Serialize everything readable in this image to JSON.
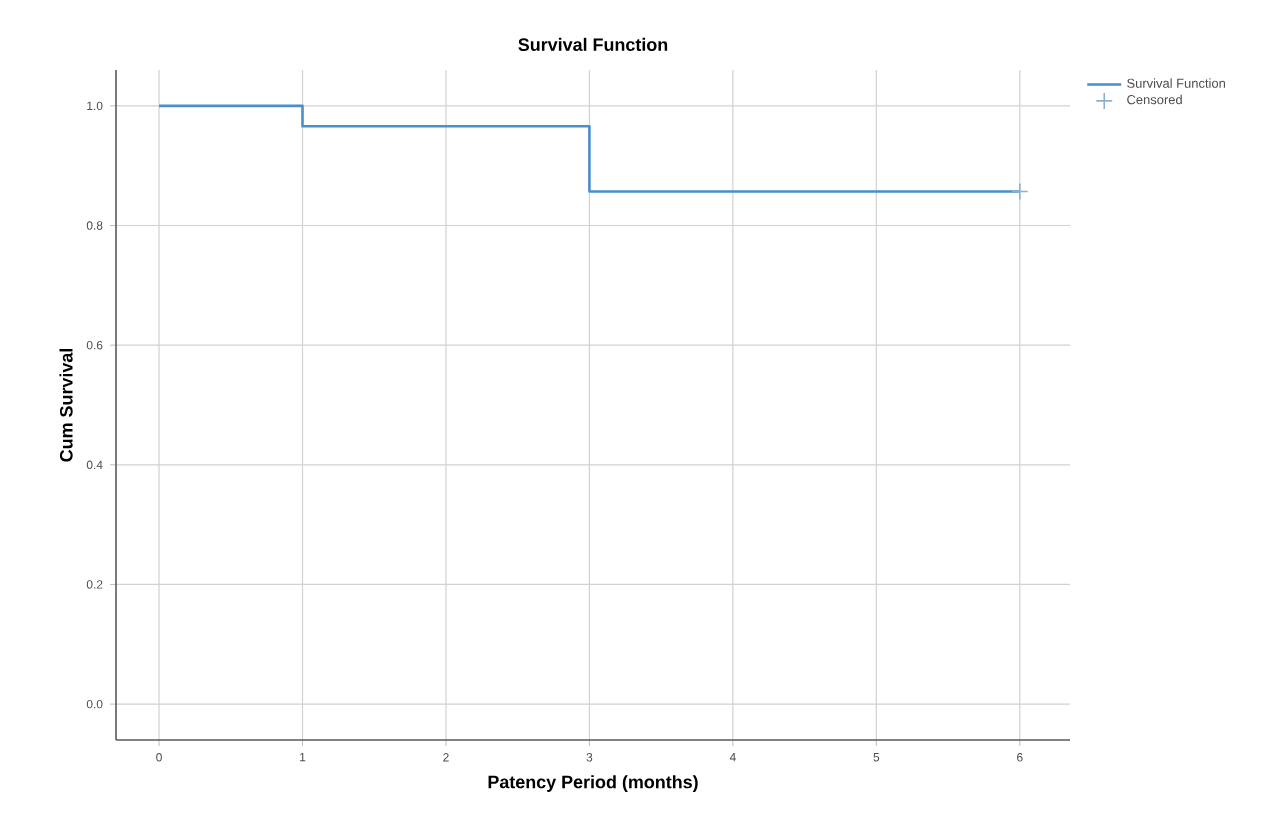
{
  "chart_data": {
    "type": "step",
    "title": "Survival Function",
    "xlabel": "Patency Period (months)",
    "ylabel": "Cum Survival",
    "series": [
      {
        "name": "Survival Function",
        "color": "#4a8fc9",
        "x": [
          0,
          1,
          3,
          6
        ],
        "values": [
          1.0,
          0.966,
          0.857,
          0.857
        ]
      },
      {
        "name": "Censored",
        "type": "scatter",
        "marker": "cross",
        "color": "#8fb0cc",
        "x": [
          6
        ],
        "values": [
          0.857
        ]
      }
    ],
    "xlim": [
      -0.3,
      6.35
    ],
    "ylim": [
      -0.06,
      1.06
    ],
    "xticks": [
      0,
      1,
      2,
      3,
      4,
      5,
      6
    ],
    "yticks": [
      {
        "value": 0,
        "label": "0.0"
      },
      {
        "value": 0.2,
        "label": "0.2"
      },
      {
        "value": 0.4,
        "label": "0.4"
      },
      {
        "value": 0.6,
        "label": "0.6"
      },
      {
        "value": 0.8,
        "label": "0.8"
      },
      {
        "value": 1.0,
        "label": "1.0"
      }
    ],
    "grid": true,
    "legend": "top right",
    "marker": "none",
    "line_style": "solid"
  }
}
